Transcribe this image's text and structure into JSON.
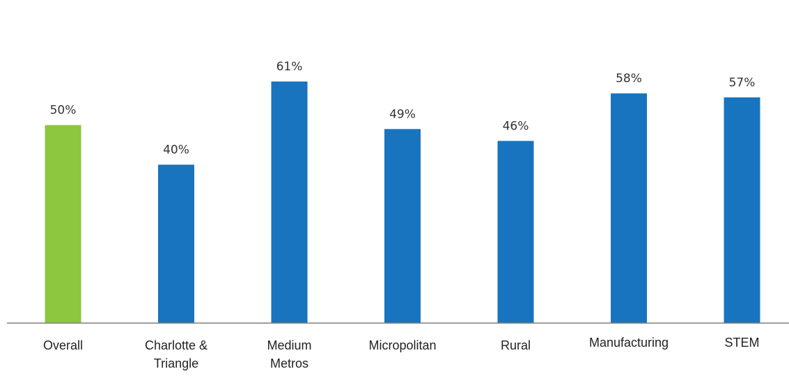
{
  "chart_data": {
    "type": "bar",
    "categories": [
      [
        "Overall"
      ],
      [
        "Charlotte &",
        "Triangle"
      ],
      [
        "Medium",
        "Metros"
      ],
      [
        "Micropolitan"
      ],
      [
        "Rural"
      ],
      [
        "Manufacturing"
      ],
      [
        "STEM"
      ]
    ],
    "values": [
      50,
      40,
      61,
      49,
      46,
      58,
      57
    ],
    "value_labels": [
      "50%",
      "40%",
      "61%",
      "49%",
      "46%",
      "58%",
      "57%"
    ],
    "colors": [
      "#8dc63f",
      "#1874be",
      "#1874be",
      "#1874be",
      "#1874be",
      "#1874be",
      "#1874be"
    ],
    "axis_color": "#7f7f7f",
    "ylim": [
      0,
      69
    ],
    "grid": false,
    "title": "",
    "xlabel": "",
    "ylabel": ""
  }
}
